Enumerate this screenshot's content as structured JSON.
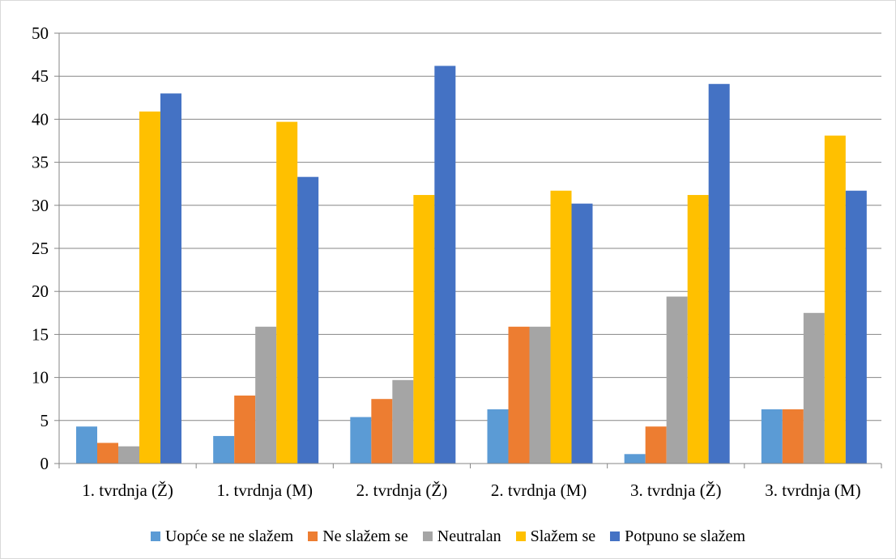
{
  "chart_data": {
    "type": "bar",
    "title": "",
    "xlabel": "",
    "ylabel": "",
    "ylim": [
      0,
      50
    ],
    "yticks": [
      0,
      5,
      10,
      15,
      20,
      25,
      30,
      35,
      40,
      45,
      50
    ],
    "grid": true,
    "legend_position": "bottom",
    "categories": [
      "1. tvrdnja (Ž)",
      "1. tvrdnja (M)",
      "2. tvrdnja (Ž)",
      "2. tvrdnja (M)",
      "3. tvrdnja (Ž)",
      "3. tvrdnja (M)"
    ],
    "series": [
      {
        "name": "Uopće se ne slažem",
        "color": "#5b9bd5",
        "values": [
          4.3,
          3.2,
          5.4,
          6.3,
          1.1,
          6.3
        ]
      },
      {
        "name": "Ne slažem se",
        "color": "#ed7d31",
        "values": [
          2.4,
          7.9,
          7.5,
          15.9,
          4.3,
          6.3
        ]
      },
      {
        "name": "Neutralan",
        "color": "#a5a5a5",
        "values": [
          2.0,
          15.9,
          9.7,
          15.9,
          19.4,
          17.5
        ]
      },
      {
        "name": "Slažem se",
        "color": "#ffc000",
        "values": [
          40.9,
          39.7,
          31.2,
          31.7,
          31.2,
          38.1
        ]
      },
      {
        "name": "Potpuno se slažem",
        "color": "#4472c4",
        "values": [
          43.0,
          33.3,
          46.2,
          30.2,
          44.1,
          31.7
        ]
      }
    ]
  }
}
